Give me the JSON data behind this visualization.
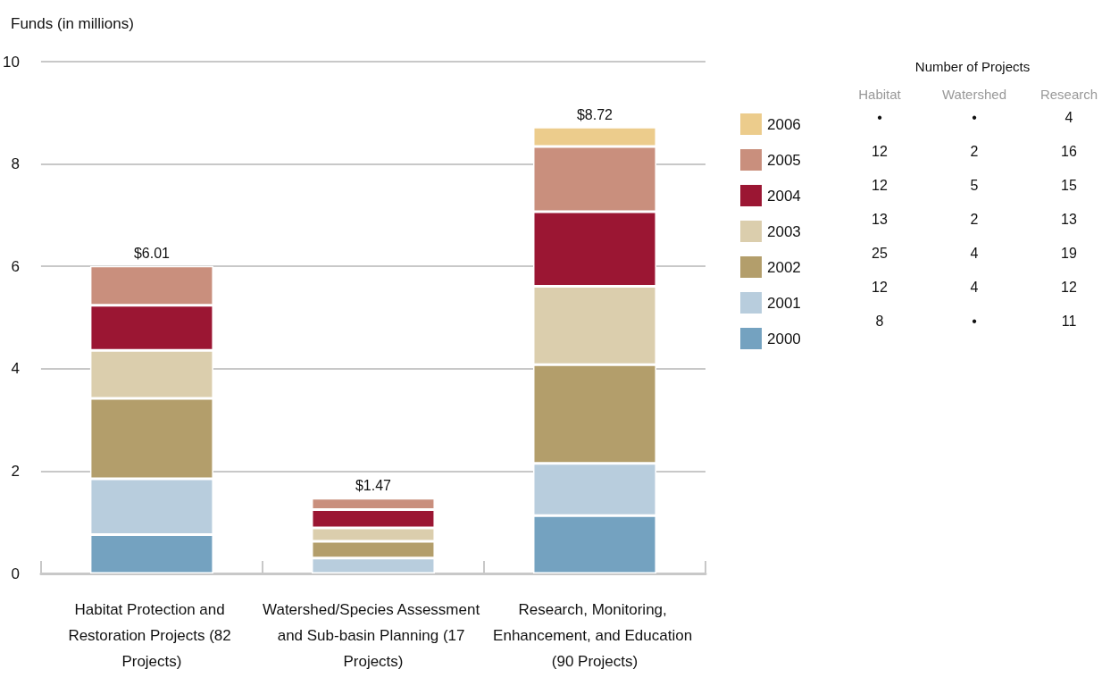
{
  "chart_data": [
    {
      "type": "bar",
      "ylabel": "Funds (in millions)",
      "stacked": true,
      "legend": "right",
      "grid": "y",
      "categories": [
        "Habitat Protection and Restoration Projects (82 Projects)",
        "Watershed/Species Assessment and Sub-basin Planning (17 Projects)",
        "Research, Monitoring, Enhancement, and Education (90 Projects)"
      ],
      "ylim": [
        0,
        10
      ],
      "yticks": [
        0,
        2,
        4,
        6,
        8,
        10
      ],
      "totals": [
        "$6.01",
        "$1.47",
        "$8.72"
      ],
      "series": [
        {
          "name": "2000",
          "color": "#74a2c0",
          "values": [
            0.76,
            null,
            1.13
          ]
        },
        {
          "name": "2001",
          "color": "#b8cddd",
          "values": [
            1.09,
            0.3,
            1.02
          ]
        },
        {
          "name": "2002",
          "color": "#b39e6b",
          "values": [
            1.57,
            0.33,
            1.93
          ]
        },
        {
          "name": "2003",
          "color": "#dbcead",
          "values": [
            0.94,
            0.26,
            1.53
          ]
        },
        {
          "name": "2004",
          "color": "#9b1633",
          "values": [
            0.88,
            0.36,
            1.46
          ]
        },
        {
          "name": "2005",
          "color": "#c98f7d",
          "values": [
            0.77,
            0.22,
            1.27
          ]
        },
        {
          "name": "2006",
          "color": "#eccc8c",
          "values": [
            null,
            null,
            0.38
          ]
        }
      ]
    },
    {
      "type": "other",
      "title": "Number of Projects",
      "categories": [
        "Habitat",
        "Watershed",
        "Research"
      ],
      "cell_labels": [
        [
          "•",
          "•",
          "4"
        ],
        [
          "12",
          "2",
          "16"
        ],
        [
          "12",
          "5",
          "15"
        ],
        [
          "13",
          "2",
          "13"
        ],
        [
          "25",
          "4",
          "19"
        ],
        [
          "12",
          "4",
          "12"
        ],
        [
          "8",
          "•",
          "11"
        ]
      ]
    }
  ]
}
